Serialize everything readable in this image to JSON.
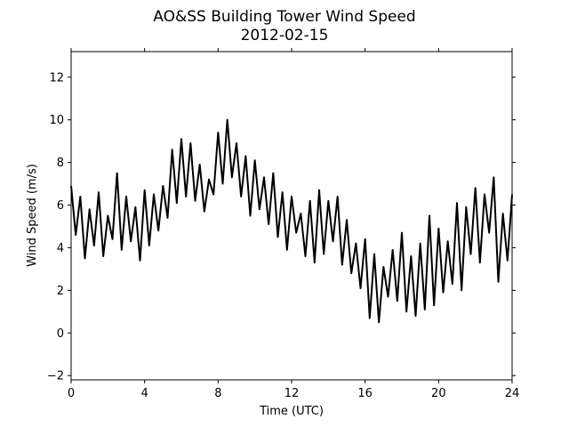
{
  "chart_data": {
    "type": "line",
    "title": "AO&SS Building Tower Wind Speed",
    "subtitle": "2012-02-15",
    "xlabel": "Time (UTC)",
    "ylabel": "Wind Speed (m/s)",
    "xlim": [
      0,
      24
    ],
    "ylim": [
      -2.2,
      13.2
    ],
    "xticks": [
      0,
      4,
      8,
      12,
      16,
      20,
      24
    ],
    "xtick_labels": [
      "0",
      "4",
      "8",
      "12",
      "16",
      "20",
      "24"
    ],
    "yticks": [
      -2,
      0,
      2,
      4,
      6,
      8,
      10,
      12
    ],
    "ytick_labels": [
      "−2",
      "0",
      "2",
      "4",
      "6",
      "8",
      "10",
      "12"
    ],
    "grid": false,
    "series": [
      {
        "color": "#000000",
        "x": [
          0,
          0.25,
          0.5,
          0.75,
          1.0,
          1.25,
          1.5,
          1.75,
          2.0,
          2.25,
          2.5,
          2.75,
          3.0,
          3.25,
          3.5,
          3.75,
          4.0,
          4.25,
          4.5,
          4.75,
          5.0,
          5.25,
          5.5,
          5.75,
          6.0,
          6.25,
          6.5,
          6.75,
          7.0,
          7.25,
          7.5,
          7.75,
          8.0,
          8.25,
          8.5,
          8.75,
          9.0,
          9.25,
          9.5,
          9.75,
          10.0,
          10.25,
          10.5,
          10.75,
          11.0,
          11.25,
          11.5,
          11.75,
          12.0,
          12.25,
          12.5,
          12.75,
          13.0,
          13.25,
          13.5,
          13.75,
          14.0,
          14.25,
          14.5,
          14.75,
          15.0,
          15.25,
          15.5,
          15.75,
          16.0,
          16.25,
          16.5,
          16.75,
          17.0,
          17.25,
          17.5,
          17.75,
          18.0,
          18.25,
          18.5,
          18.75,
          19.0,
          19.25,
          19.5,
          19.75,
          20.0,
          20.25,
          20.5,
          20.75,
          21.0,
          21.25,
          21.5,
          21.75,
          22.0,
          22.25,
          22.5,
          22.75,
          23.0,
          23.25,
          23.5,
          23.75,
          24.0
        ],
        "values": [
          6.9,
          4.6,
          6.4,
          3.5,
          5.8,
          4.1,
          6.6,
          3.6,
          5.5,
          4.4,
          7.5,
          3.9,
          6.4,
          4.3,
          5.9,
          3.4,
          6.7,
          4.1,
          6.5,
          4.8,
          6.9,
          5.4,
          8.6,
          6.1,
          9.1,
          6.4,
          8.9,
          6.2,
          7.9,
          5.7,
          7.2,
          6.5,
          9.4,
          7.0,
          10.0,
          7.3,
          8.9,
          6.4,
          8.3,
          5.5,
          8.1,
          5.8,
          7.3,
          5.1,
          7.5,
          4.5,
          6.6,
          3.9,
          6.4,
          4.7,
          5.6,
          3.6,
          6.2,
          3.3,
          6.7,
          3.7,
          6.2,
          4.3,
          6.4,
          3.2,
          5.3,
          2.8,
          4.2,
          2.1,
          4.4,
          0.7,
          3.7,
          0.5,
          3.1,
          1.7,
          3.9,
          1.5,
          4.7,
          1.0,
          3.6,
          0.8,
          4.2,
          1.1,
          5.5,
          1.3,
          4.9,
          1.9,
          4.3,
          2.3,
          6.1,
          2.0,
          5.9,
          3.7,
          6.8,
          3.3,
          6.5,
          4.7,
          7.3,
          2.4,
          5.6,
          3.4,
          6.5
        ]
      }
    ]
  }
}
